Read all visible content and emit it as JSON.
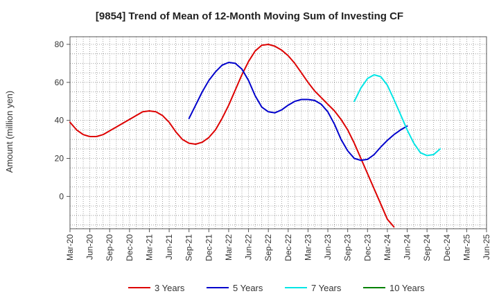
{
  "chart_data": {
    "type": "line",
    "title": "[9854]  Trend of Mean of 12-Month Moving Sum of Investing CF",
    "xlabel": "",
    "ylabel": "Amount (million yen)",
    "ylim": [
      -17,
      84
    ],
    "yticks": [
      0,
      20,
      40,
      60,
      80
    ],
    "grid": true,
    "x_tick_labels": [
      "Mar-20",
      "Jun-20",
      "Sep-20",
      "Dec-20",
      "Mar-21",
      "Jun-21",
      "Sep-21",
      "Dec-21",
      "Mar-22",
      "Jun-22",
      "Sep-22",
      "Dec-22",
      "Mar-23",
      "Jun-23",
      "Sep-23",
      "Dec-23",
      "Mar-24",
      "Jun-24",
      "Sep-24",
      "Dec-24",
      "Mar-25",
      "Jun-25"
    ],
    "legend_position": "bottom",
    "series": [
      {
        "name": "3 Years",
        "color": "#dd0000",
        "start_index": 0,
        "values": [
          39,
          35,
          32.5,
          31.5,
          31.5,
          32.5,
          34.5,
          36.5,
          38.5,
          40.5,
          42.5,
          44.5,
          45,
          44.5,
          42.5,
          39,
          34,
          30,
          28,
          27.5,
          28.5,
          31,
          35,
          41,
          48,
          56,
          64,
          71,
          76.5,
          79.5,
          80,
          79,
          77,
          74,
          70,
          65,
          60,
          55.5,
          52,
          48.5,
          45,
          40.5,
          35,
          28,
          20,
          12,
          4,
          -4,
          -12,
          -16
        ]
      },
      {
        "name": "5 Years",
        "color": "#0000cc",
        "start_index": 18,
        "values": [
          41,
          48,
          55,
          61,
          65.5,
          69,
          70.5,
          70,
          67,
          61,
          53,
          47,
          44.5,
          44,
          45.5,
          48,
          50,
          51,
          51,
          50.5,
          48.5,
          44.5,
          38,
          30,
          24,
          20,
          19,
          19.5,
          22,
          26,
          29.5,
          32.5,
          35,
          37
        ]
      },
      {
        "name": "7 Years",
        "color": "#00e5e5",
        "start_index": 43,
        "values": [
          50,
          57,
          62,
          64,
          63,
          58.5,
          51,
          43,
          35,
          28,
          23,
          21.5,
          22,
          25
        ]
      },
      {
        "name": "10 Years",
        "color": "#008000",
        "start_index": 0,
        "values": []
      }
    ]
  }
}
